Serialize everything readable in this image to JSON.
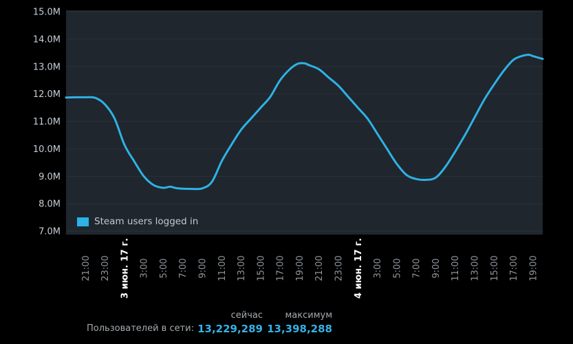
{
  "page": {
    "background": "#000000"
  },
  "chart_data": {
    "type": "line",
    "title": "",
    "legend_position": "inside-bottom-left",
    "grid": "horizontal-only",
    "x_unit": "hours-from-start",
    "x_range": [
      0,
      49
    ],
    "y_range": [
      7,
      15
    ],
    "colors": {
      "plot_bg": "#20262d",
      "grid": "#293039",
      "line": "#2eb2e6",
      "y_label": "#c5ced6",
      "x_label": "#8f969c",
      "date_label": "#ffffff",
      "legend_text": "#c1cad2"
    },
    "y_ticks": [
      {
        "v": 15,
        "label": "15.0M"
      },
      {
        "v": 14,
        "label": "14.0M"
      },
      {
        "v": 13,
        "label": "13.0M"
      },
      {
        "v": 12,
        "label": "12.0M"
      },
      {
        "v": 11,
        "label": "11.0M"
      },
      {
        "v": 10,
        "label": "10.0M"
      },
      {
        "v": 9,
        "label": "9.0M"
      },
      {
        "v": 8,
        "label": "8.0M"
      },
      {
        "v": 7,
        "label": "7.0M"
      }
    ],
    "x_ticks": [
      {
        "t": 2,
        "label": "21:00"
      },
      {
        "t": 4,
        "label": "23:00"
      },
      {
        "t": 6,
        "label": "3 июн. 17 г.",
        "date": true
      },
      {
        "t": 8,
        "label": "3:00"
      },
      {
        "t": 10,
        "label": "5:00"
      },
      {
        "t": 12,
        "label": "7:00"
      },
      {
        "t": 14,
        "label": "9:00"
      },
      {
        "t": 16,
        "label": "11:00"
      },
      {
        "t": 18,
        "label": "13:00"
      },
      {
        "t": 20,
        "label": "15:00"
      },
      {
        "t": 22,
        "label": "17:00"
      },
      {
        "t": 24,
        "label": "19:00"
      },
      {
        "t": 26,
        "label": "21:00"
      },
      {
        "t": 28,
        "label": "23:00"
      },
      {
        "t": 30,
        "label": "4 июн. 17 г.",
        "date": true
      },
      {
        "t": 32,
        "label": "3:00"
      },
      {
        "t": 34,
        "label": "5:00"
      },
      {
        "t": 36,
        "label": "7:00"
      },
      {
        "t": 38,
        "label": "9:00"
      },
      {
        "t": 40,
        "label": "11:00"
      },
      {
        "t": 42,
        "label": "13:00"
      },
      {
        "t": 44,
        "label": "15:00"
      },
      {
        "t": 46,
        "label": "17:00"
      },
      {
        "t": 48,
        "label": "19:00"
      }
    ],
    "series": [
      {
        "name": "Steam users logged in",
        "color": "#2eb2e6",
        "points": [
          [
            0,
            11.87
          ],
          [
            1,
            11.88
          ],
          [
            2,
            11.88
          ],
          [
            3,
            11.86
          ],
          [
            4,
            11.62
          ],
          [
            5,
            11.1
          ],
          [
            6,
            10.15
          ],
          [
            7,
            9.55
          ],
          [
            8,
            9.0
          ],
          [
            9,
            8.68
          ],
          [
            10,
            8.58
          ],
          [
            10.7,
            8.62
          ],
          [
            11.5,
            8.56
          ],
          [
            13,
            8.54
          ],
          [
            14,
            8.56
          ],
          [
            15,
            8.8
          ],
          [
            16,
            9.55
          ],
          [
            17,
            10.15
          ],
          [
            18,
            10.7
          ],
          [
            19,
            11.1
          ],
          [
            20,
            11.5
          ],
          [
            21,
            11.9
          ],
          [
            22,
            12.5
          ],
          [
            23,
            12.9
          ],
          [
            23.8,
            13.1
          ],
          [
            24.5,
            13.12
          ],
          [
            25,
            13.05
          ],
          [
            26,
            12.9
          ],
          [
            27,
            12.6
          ],
          [
            28,
            12.3
          ],
          [
            29,
            11.9
          ],
          [
            30,
            11.5
          ],
          [
            31,
            11.1
          ],
          [
            32,
            10.55
          ],
          [
            33,
            10.0
          ],
          [
            34,
            9.45
          ],
          [
            35,
            9.05
          ],
          [
            36,
            8.9
          ],
          [
            37,
            8.87
          ],
          [
            38,
            8.95
          ],
          [
            39,
            9.35
          ],
          [
            40,
            9.9
          ],
          [
            41,
            10.5
          ],
          [
            42,
            11.15
          ],
          [
            43,
            11.8
          ],
          [
            44,
            12.35
          ],
          [
            45,
            12.85
          ],
          [
            46,
            13.25
          ],
          [
            47,
            13.4
          ],
          [
            47.6,
            13.43
          ],
          [
            48,
            13.38
          ],
          [
            49,
            13.28
          ]
        ]
      }
    ]
  },
  "stats": {
    "now_label": "сейчас",
    "max_label": "максимум",
    "users_label": "Пользователей в сети:",
    "now_value": "13,229,289",
    "max_value": "13,398,288",
    "value_color": "#35b2e5"
  }
}
